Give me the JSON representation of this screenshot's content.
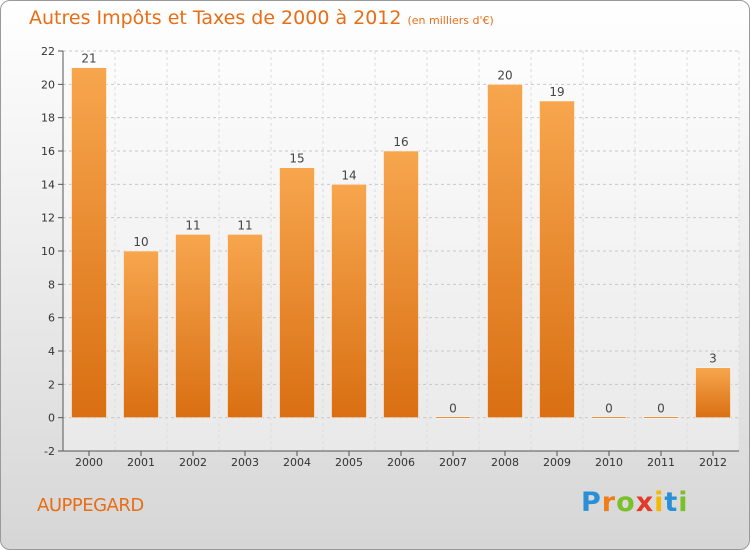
{
  "chart_data": {
    "type": "bar",
    "title": "Autres Impôts et Taxes de 2000 à 2012",
    "subtitle": "(en milliers d'€)",
    "categories": [
      "2000",
      "2001",
      "2002",
      "2003",
      "2004",
      "2005",
      "2006",
      "2007",
      "2008",
      "2009",
      "2010",
      "2011",
      "2012"
    ],
    "values": [
      21,
      10,
      11,
      11,
      15,
      14,
      16,
      0,
      20,
      19,
      0,
      0,
      3
    ],
    "ylim": [
      -2,
      22
    ],
    "yticks": [
      -2,
      0,
      2,
      4,
      6,
      8,
      10,
      12,
      14,
      16,
      18,
      20,
      22
    ],
    "grid": true,
    "bar_color": "#f0922e"
  },
  "commune": "AUPPEGARD",
  "logo": {
    "letters": [
      "P",
      "r",
      "o",
      "x",
      "i",
      "t",
      "i"
    ],
    "colors": [
      "#2a8fd6",
      "#f07d1a",
      "#7bbf2a",
      "#e23a2a",
      "#f5b800",
      "#2a8fd6",
      "#7bbf2a"
    ]
  }
}
